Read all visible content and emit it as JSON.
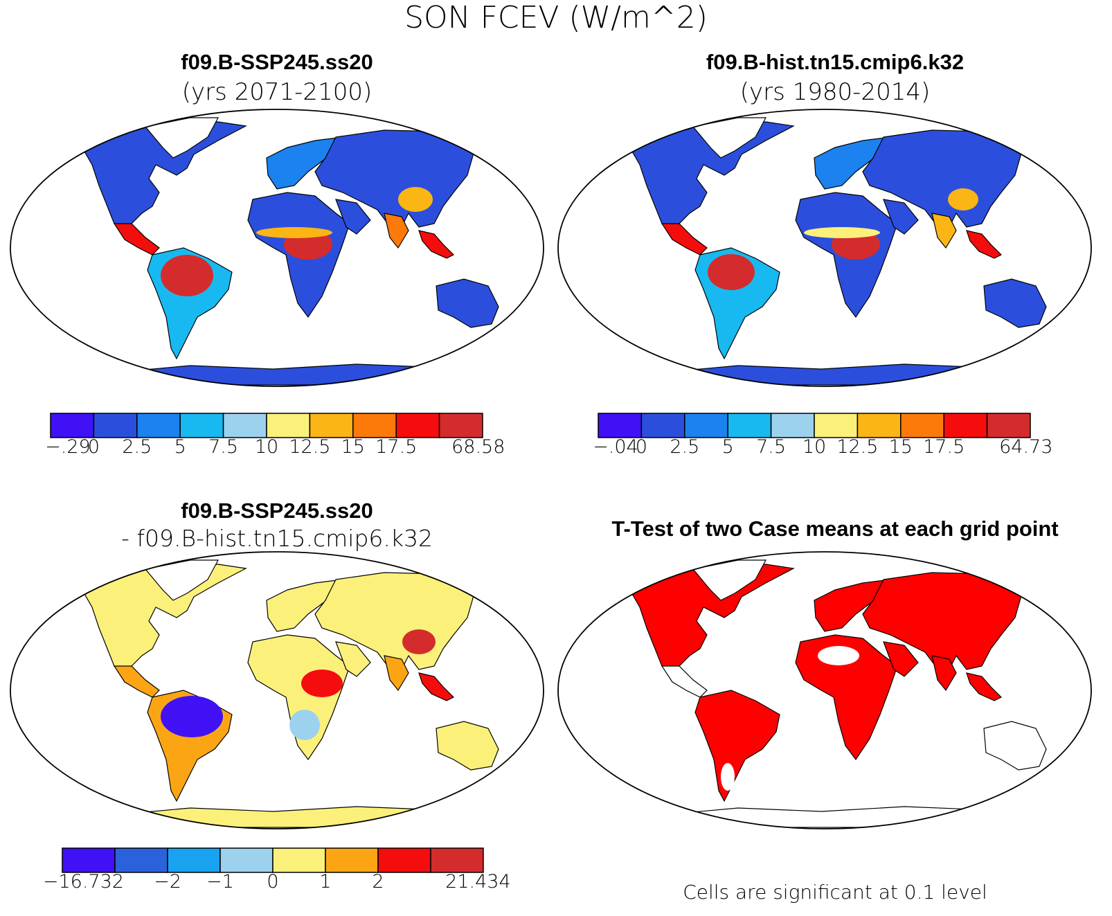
{
  "main_title": "SON FCEV (W/m^2)",
  "panels": {
    "top_left": {
      "title": "f09.B-SSP245.ss20",
      "subtitle": "(yrs 2071-2100)",
      "colorbar": {
        "colors": [
          "#4011f5",
          "#2b4fdc",
          "#1b82ef",
          "#18b9f0",
          "#9dd2ef",
          "#fbf07a",
          "#fbb515",
          "#fb7a0a",
          "#f50d0d",
          "#d42c2c"
        ],
        "labels": [
          "-.29",
          "0",
          "2.5",
          "5",
          "7.5",
          "10",
          "12.5",
          "15",
          "17.5",
          "68.58"
        ]
      }
    },
    "top_right": {
      "title": "f09.B-hist.tn15.cmip6.k32",
      "subtitle": "(yrs 1980-2014)",
      "colorbar": {
        "colors": [
          "#4011f5",
          "#2b4fdc",
          "#1b82ef",
          "#18b9f0",
          "#9dd2ef",
          "#fbf07a",
          "#fbb515",
          "#fb7a0a",
          "#f50d0d",
          "#d42c2c"
        ],
        "labels": [
          "-.04",
          "0",
          "2.5",
          "5",
          "7.5",
          "10",
          "12.5",
          "15",
          "17.5",
          "64.73"
        ]
      }
    },
    "bottom_left": {
      "title": "f09.B-SSP245.ss20",
      "subtitle": "- f09.B-hist.tn15.cmip6.k32",
      "colorbar": {
        "colors": [
          "#4011f5",
          "#2b62dc",
          "#18a2f0",
          "#9dd2ef",
          "#fbf07a",
          "#fba515",
          "#f50d0d",
          "#d42c2c"
        ],
        "labels": [
          "-16.732",
          "-2",
          "-1",
          "0",
          "1",
          "2",
          "21.434"
        ]
      }
    },
    "bottom_right": {
      "title": "T-Test of two Case means at each grid point",
      "footnote": "Cells are significant at 0.1 level",
      "significant_color": "#ff0000"
    }
  }
}
